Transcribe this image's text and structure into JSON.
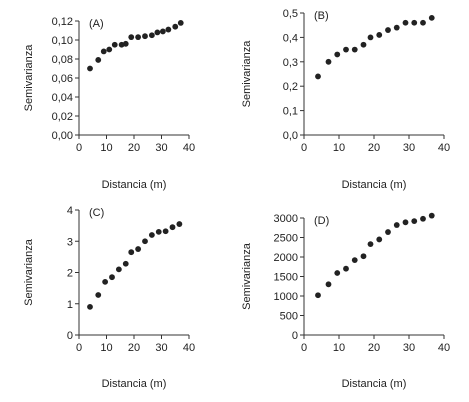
{
  "colors": {
    "points": "#222222",
    "axes": "#333333",
    "text": "#222222"
  },
  "chart_data": [
    {
      "type": "scatter",
      "label": "(A)",
      "xlabel": "Distancia (m)",
      "ylabel": "Semivarianza",
      "xlim": [
        0,
        40
      ],
      "ylim": [
        0,
        0.12
      ],
      "xticks": [
        "0",
        "10",
        "20",
        "30",
        "40"
      ],
      "xtick_values": [
        0,
        10,
        20,
        30,
        40
      ],
      "yticks": [
        "0,00",
        "0,02",
        "0,04",
        "0,06",
        "0,08",
        "0,10",
        "0,12"
      ],
      "ytick_values": [
        0,
        0.02,
        0.04,
        0.06,
        0.08,
        0.1,
        0.12
      ],
      "x": [
        4,
        7,
        9,
        11,
        13,
        15.5,
        17,
        19,
        21.5,
        24,
        26.5,
        28.5,
        30.5,
        32.5,
        35,
        37
      ],
      "y": [
        0.07,
        0.079,
        0.088,
        0.09,
        0.095,
        0.095,
        0.096,
        0.103,
        0.103,
        0.104,
        0.105,
        0.108,
        0.109,
        0.111,
        0.114,
        0.118
      ]
    },
    {
      "type": "scatter",
      "label": "(B)",
      "xlabel": "Distancia (m)",
      "ylabel": "Semivarianza",
      "xlim": [
        0,
        40
      ],
      "ylim": [
        0,
        0.5
      ],
      "xticks": [
        "0",
        "10",
        "20",
        "30",
        "40"
      ],
      "xtick_values": [
        0,
        10,
        20,
        30,
        40
      ],
      "yticks": [
        "0,0",
        "0,1",
        "0,2",
        "0,3",
        "0,4",
        "0,5"
      ],
      "ytick_values": [
        0,
        0.1,
        0.2,
        0.3,
        0.4,
        0.5
      ],
      "x": [
        4,
        7,
        9.5,
        12,
        14.5,
        17,
        19,
        21.5,
        24,
        26.5,
        29,
        31.5,
        34,
        36.5
      ],
      "y": [
        0.24,
        0.3,
        0.33,
        0.35,
        0.35,
        0.37,
        0.4,
        0.41,
        0.43,
        0.44,
        0.46,
        0.46,
        0.46,
        0.48
      ]
    },
    {
      "type": "scatter",
      "label": "(C)",
      "xlabel": "Distancia (m)",
      "ylabel": "Semivarianza",
      "xlim": [
        0,
        40
      ],
      "ylim": [
        0,
        4
      ],
      "xticks": [
        "0",
        "10",
        "20",
        "30",
        "40"
      ],
      "xtick_values": [
        0,
        10,
        20,
        30,
        40
      ],
      "yticks": [
        "0",
        "1",
        "2",
        "3",
        "4"
      ],
      "ytick_values": [
        0,
        1,
        2,
        3,
        4
      ],
      "x": [
        4,
        7,
        9.5,
        12,
        14.5,
        17,
        19,
        21.5,
        24,
        26.5,
        29,
        31.5,
        34,
        36.5
      ],
      "y": [
        0.9,
        1.28,
        1.7,
        1.85,
        2.1,
        2.28,
        2.65,
        2.75,
        3.0,
        3.2,
        3.3,
        3.32,
        3.45,
        3.55
      ]
    },
    {
      "type": "scatter",
      "label": "(D)",
      "xlabel": "Distancia (m)",
      "ylabel": "Semivarianza",
      "xlim": [
        0,
        40
      ],
      "ylim": [
        0,
        3000
      ],
      "xticks": [
        "0",
        "10",
        "20",
        "30",
        "40"
      ],
      "xtick_values": [
        0,
        10,
        20,
        30,
        40
      ],
      "yticks": [
        "0",
        "500",
        "1000",
        "1500",
        "2000",
        "2500",
        "3000"
      ],
      "ytick_values": [
        0,
        500,
        1000,
        1500,
        2000,
        2500,
        3000
      ],
      "x": [
        4,
        7,
        9.5,
        12,
        14.5,
        17,
        19,
        21.5,
        24,
        26.5,
        29,
        31.5,
        34,
        36.5
      ],
      "y": [
        1020,
        1300,
        1590,
        1700,
        1920,
        2020,
        2330,
        2450,
        2640,
        2820,
        2890,
        2920,
        2980,
        3060
      ]
    }
  ]
}
